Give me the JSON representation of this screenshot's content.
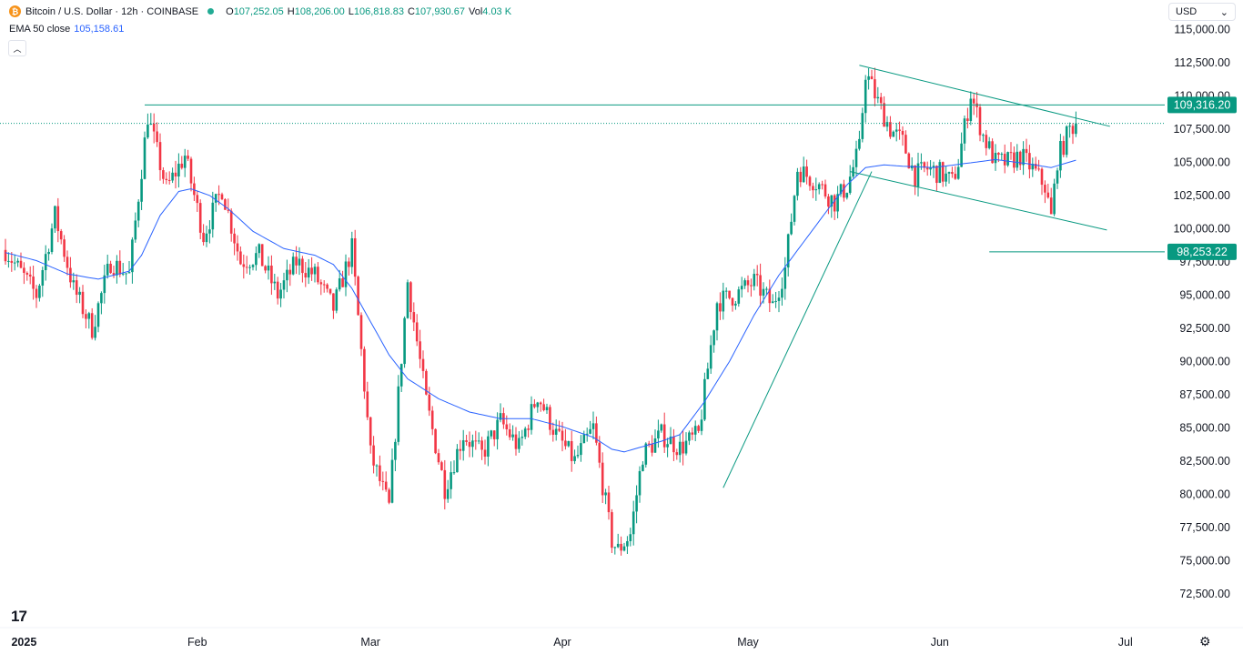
{
  "header": {
    "symbol_logo": "₿",
    "symbol_title": "Bitcoin / U.S. Dollar · 12h · COINBASE",
    "open_label": "O",
    "open_value": "107,252.05",
    "high_label": "H",
    "high_value": "108,206.00",
    "low_label": "L",
    "low_value": "106,818.83",
    "close_label": "C",
    "close_value": "107,930.67",
    "vol_label": "Vol",
    "vol_value": "4.03 K",
    "ema_label": "EMA 50 close",
    "ema_value": "105,158.61",
    "collapse_icon": "chevron-up-icon"
  },
  "currency_select": {
    "label": "USD",
    "icon": "chevron-down-icon"
  },
  "footer": {
    "tv_logo": "17",
    "settings_icon": "gear-icon"
  },
  "colors": {
    "up": "#089981",
    "down": "#f23645",
    "ema": "#2962ff",
    "trend": "#089981",
    "text": "#131722"
  },
  "chart_data": {
    "type": "candlestick",
    "title": "Bitcoin / U.S. Dollar · 12h · COINBASE",
    "ylim": [
      71000,
      115500
    ],
    "y_ticks": [
      115000,
      112500,
      110000,
      107500,
      105000,
      102500,
      100000,
      97500,
      95000,
      92500,
      90000,
      87500,
      85000,
      82500,
      80000,
      77500,
      75000,
      72500
    ],
    "y_tick_labels": [
      "115,000.00",
      "112,500.00",
      "110,000.00",
      "107,500.00",
      "105,000.00",
      "102,500.00",
      "100,000.00",
      "97,500.00",
      "95,000.00",
      "92,500.00",
      "90,000.00",
      "87,500.00",
      "85,000.00",
      "82,500.00",
      "80,000.00",
      "77,500.00",
      "75,000.00",
      "72,500.00"
    ],
    "x_domain_bars": [
      0,
      256
    ],
    "x_ticks": [
      {
        "bar": 6,
        "label": "2025",
        "bold": true
      },
      {
        "bar": 62,
        "label": "Feb"
      },
      {
        "bar": 118,
        "label": "Mar"
      },
      {
        "bar": 180,
        "label": "Apr"
      },
      {
        "bar": 240,
        "label": "May"
      },
      {
        "bar": 302,
        "label": "Jun"
      },
      {
        "bar": 362,
        "label": "Jul"
      }
    ],
    "price_path": [
      [
        0,
        98400
      ],
      [
        10,
        95000
      ],
      [
        16,
        101000
      ],
      [
        22,
        95500
      ],
      [
        28,
        92500
      ],
      [
        34,
        97500
      ],
      [
        40,
        96500
      ],
      [
        46,
        108500
      ],
      [
        52,
        103000
      ],
      [
        58,
        105500
      ],
      [
        64,
        99500
      ],
      [
        70,
        103000
      ],
      [
        76,
        97500
      ],
      [
        82,
        98000
      ],
      [
        88,
        95000
      ],
      [
        94,
        97500
      ],
      [
        100,
        96500
      ],
      [
        106,
        94000
      ],
      [
        112,
        98500
      ],
      [
        118,
        83000
      ],
      [
        124,
        79000
      ],
      [
        130,
        96000
      ],
      [
        136,
        87000
      ],
      [
        142,
        80500
      ],
      [
        148,
        84500
      ],
      [
        154,
        83000
      ],
      [
        160,
        85500
      ],
      [
        166,
        83500
      ],
      [
        172,
        87500
      ],
      [
        178,
        84500
      ],
      [
        184,
        82500
      ],
      [
        190,
        85000
      ],
      [
        196,
        76500
      ],
      [
        198,
        75800
      ],
      [
        202,
        77000
      ],
      [
        206,
        83000
      ],
      [
        212,
        84500
      ],
      [
        218,
        83500
      ],
      [
        224,
        84500
      ],
      [
        230,
        94500
      ],
      [
        236,
        95000
      ],
      [
        242,
        96000
      ],
      [
        248,
        94200
      ],
      [
        252,
        97000
      ],
      [
        256,
        104500
      ],
      [
        262,
        103500
      ],
      [
        268,
        102000
      ],
      [
        272,
        103200
      ],
      [
        276,
        106000
      ],
      [
        278,
        111800
      ],
      [
        282,
        109500
      ],
      [
        286,
        107500
      ],
      [
        290,
        106500
      ],
      [
        294,
        104000
      ],
      [
        298,
        104500
      ],
      [
        302,
        104200
      ],
      [
        306,
        103500
      ],
      [
        308,
        105000
      ],
      [
        312,
        110200
      ],
      [
        316,
        107000
      ],
      [
        320,
        105000
      ],
      [
        324,
        105000
      ],
      [
        328,
        105500
      ],
      [
        332,
        104500
      ],
      [
        336,
        103200
      ],
      [
        338,
        100800
      ],
      [
        340,
        105200
      ],
      [
        344,
        107500
      ],
      [
        346,
        107930
      ]
    ],
    "price_path_note": "approximate close price trajectory by 12h bar index",
    "ema_label": "EMA 50 close",
    "ema_last": 105158.61,
    "ema_path": [
      [
        0,
        98200
      ],
      [
        10,
        97600
      ],
      [
        20,
        96600
      ],
      [
        30,
        96200
      ],
      [
        40,
        96800
      ],
      [
        44,
        98000
      ],
      [
        50,
        101000
      ],
      [
        56,
        102800
      ],
      [
        60,
        103000
      ],
      [
        66,
        102500
      ],
      [
        72,
        101500
      ],
      [
        80,
        99800
      ],
      [
        90,
        98500
      ],
      [
        100,
        98000
      ],
      [
        106,
        97300
      ],
      [
        112,
        95500
      ],
      [
        118,
        93000
      ],
      [
        124,
        90500
      ],
      [
        130,
        88700
      ],
      [
        140,
        87200
      ],
      [
        150,
        86200
      ],
      [
        160,
        85700
      ],
      [
        170,
        85700
      ],
      [
        180,
        85100
      ],
      [
        190,
        84300
      ],
      [
        196,
        83400
      ],
      [
        200,
        83200
      ],
      [
        206,
        83600
      ],
      [
        212,
        84000
      ],
      [
        218,
        84500
      ],
      [
        226,
        87000
      ],
      [
        234,
        90000
      ],
      [
        242,
        93500
      ],
      [
        250,
        96500
      ],
      [
        258,
        99000
      ],
      [
        266,
        101500
      ],
      [
        272,
        103300
      ],
      [
        278,
        104600
      ],
      [
        284,
        104800
      ],
      [
        290,
        104700
      ],
      [
        300,
        104600
      ],
      [
        310,
        104900
      ],
      [
        320,
        105200
      ],
      [
        330,
        104900
      ],
      [
        338,
        104600
      ],
      [
        346,
        105158
      ]
    ],
    "annotations": [
      {
        "type": "horizontal_line",
        "price": 109316.2,
        "label": "109,316.20",
        "from_bar": 45,
        "to_bar": 400
      },
      {
        "type": "horizontal_line",
        "price": 98253.22,
        "label": "98,253.22",
        "from_bar": 318,
        "to_bar": 400
      },
      {
        "type": "trend_line",
        "points": [
          [
            276,
            112300
          ],
          [
            357,
            107700
          ]
        ]
      },
      {
        "type": "trend_line",
        "points": [
          [
            273,
            104300
          ],
          [
            356,
            99900
          ]
        ]
      },
      {
        "type": "trend_line",
        "points": [
          [
            232,
            80500
          ],
          [
            280,
            104300
          ]
        ]
      },
      {
        "type": "dotted_price_line",
        "price": 107930.67
      }
    ]
  }
}
